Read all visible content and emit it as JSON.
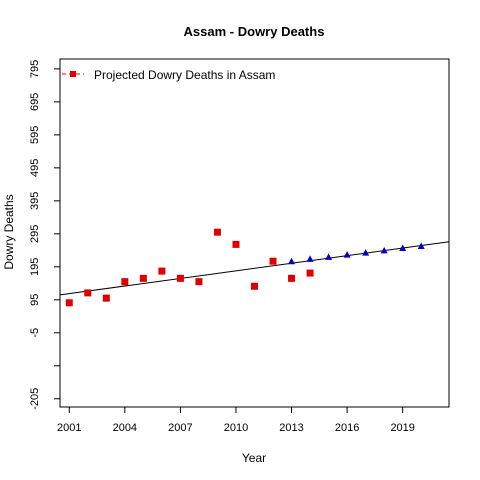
{
  "chart_data": {
    "type": "scatter",
    "title": "Assam  -  Dowry Deaths",
    "xlabel": "Year",
    "ylabel": "Dowry Deaths",
    "xlim": [
      2000.5,
      2021.5
    ],
    "ylim": [
      -230,
      825
    ],
    "x_ticks": [
      2001,
      2004,
      2007,
      2010,
      2013,
      2016,
      2019
    ],
    "y_ticks": [
      -205,
      -105,
      -5,
      95,
      195,
      295,
      395,
      495,
      595,
      695,
      795
    ],
    "y_tick_labels": [
      "-205",
      "",
      "-5",
      "95",
      "195",
      "295",
      "395",
      "495",
      "595",
      "695",
      "795"
    ],
    "legend": {
      "label": "Projected  Dowry Deaths  in  Assam",
      "position": "top-left"
    },
    "colors": {
      "actual": "#e00000",
      "projected": "#0000cc",
      "trend": "#000000"
    },
    "series": [
      {
        "kind": "actual",
        "marker": "square",
        "x": [
          2001,
          2002,
          2003,
          2004,
          2005,
          2006,
          2007,
          2008,
          2009,
          2010,
          2011,
          2012,
          2013,
          2014
        ],
        "y": [
          86,
          116,
          100,
          150,
          160,
          182,
          160,
          150,
          300,
          263,
          136,
          212,
          160,
          176
        ]
      },
      {
        "kind": "projected",
        "marker": "triangle",
        "x": [
          2013,
          2014,
          2015,
          2016,
          2017,
          2018,
          2019,
          2020
        ],
        "y": [
          212,
          219,
          225,
          232,
          238,
          245,
          252,
          258
        ]
      }
    ],
    "trend_line": {
      "x": [
        2000.5,
        2021.5
      ],
      "y": [
        110,
        271
      ]
    }
  }
}
